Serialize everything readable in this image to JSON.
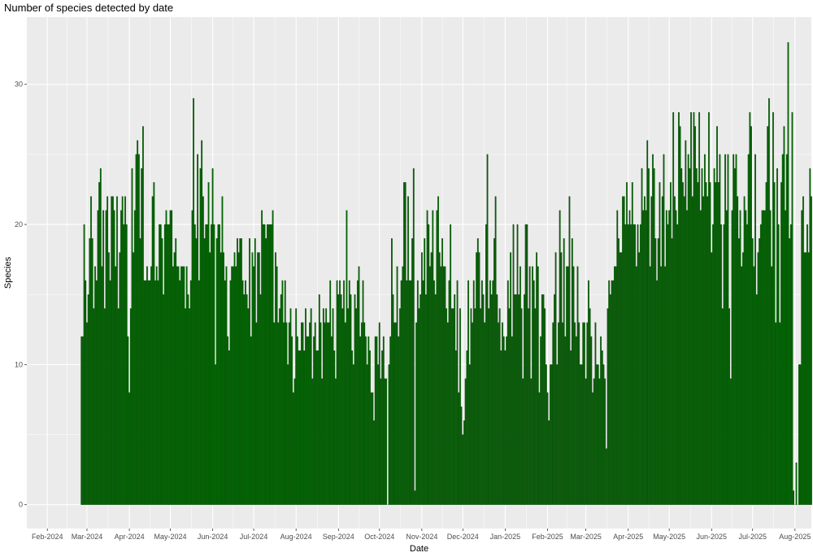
{
  "chart_data": {
    "type": "bar",
    "title": "Number of species detected by date",
    "xlabel": "Date",
    "ylabel": "Species",
    "x_start": "2024-02-26",
    "xlim": [
      "2024-01-17",
      "2025-08-13"
    ],
    "ylim": [
      -1.7,
      34.8
    ],
    "y_ticks": [
      0,
      10,
      20,
      30
    ],
    "x_ticks": [
      {
        "date": "2024-02-01",
        "label": "Feb-2024"
      },
      {
        "date": "2024-03-01",
        "label": "Mar-2024"
      },
      {
        "date": "2024-04-01",
        "label": "Apr-2024"
      },
      {
        "date": "2024-05-01",
        "label": "May-2024"
      },
      {
        "date": "2024-06-01",
        "label": "Jun-2024"
      },
      {
        "date": "2024-07-01",
        "label": "Jul-2024"
      },
      {
        "date": "2024-08-01",
        "label": "Aug-2024"
      },
      {
        "date": "2024-09-01",
        "label": "Sep-2024"
      },
      {
        "date": "2024-10-01",
        "label": "Oct-2024"
      },
      {
        "date": "2024-11-01",
        "label": "Nov-2024"
      },
      {
        "date": "2024-12-01",
        "label": "Dec-2024"
      },
      {
        "date": "2025-01-01",
        "label": "Jan-2025"
      },
      {
        "date": "2025-02-01",
        "label": "Feb-2025"
      },
      {
        "date": "2025-03-01",
        "label": "Mar-2025"
      },
      {
        "date": "2025-04-01",
        "label": "Apr-2025"
      },
      {
        "date": "2025-05-01",
        "label": "May-2025"
      },
      {
        "date": "2025-06-01",
        "label": "Jun-2025"
      },
      {
        "date": "2025-07-01",
        "label": "Jul-2025"
      },
      {
        "date": "2025-08-01",
        "label": "Aug-2025"
      }
    ],
    "values": [
      12,
      12,
      20,
      16,
      13,
      15,
      19,
      22,
      19,
      14,
      17,
      16,
      21,
      23,
      24,
      17,
      21,
      14,
      21,
      22,
      18,
      16,
      22,
      22,
      21,
      17,
      22,
      14,
      18,
      21,
      22,
      20,
      22,
      20,
      12,
      8,
      14,
      24,
      18,
      21,
      25,
      26,
      25,
      19,
      24,
      27,
      16,
      16,
      17,
      16,
      16,
      17,
      22,
      23,
      16,
      17,
      16,
      20,
      20,
      19,
      15,
      20,
      21,
      20,
      20,
      21,
      21,
      17,
      18,
      19,
      17,
      17,
      16,
      17,
      17,
      17,
      14,
      17,
      15,
      14,
      16,
      21,
      29,
      20,
      19,
      25,
      16,
      24,
      26,
      22,
      19,
      20,
      20,
      23,
      18,
      20,
      24,
      20,
      10,
      19,
      20,
      20,
      18,
      22,
      18,
      16,
      17,
      12,
      11,
      16,
      17,
      17,
      18,
      17,
      19,
      18,
      19,
      19,
      16,
      15,
      16,
      15,
      14,
      19,
      12,
      18,
      17,
      19,
      13,
      18,
      18,
      15,
      21,
      20,
      20,
      19,
      20,
      20,
      20,
      20,
      21,
      13,
      18,
      17,
      13,
      14,
      15,
      16,
      13,
      16,
      13,
      10,
      13,
      14,
      12,
      8,
      9,
      14,
      12,
      11,
      11,
      13,
      13,
      11,
      14,
      12,
      12,
      13,
      14,
      9,
      12,
      13,
      11,
      11,
      15,
      13,
      9,
      14,
      13,
      14,
      13,
      13,
      16,
      12,
      14,
      11,
      9,
      16,
      15,
      16,
      15,
      14,
      16,
      13,
      21,
      14,
      16,
      15,
      11,
      10,
      15,
      14,
      16,
      17,
      12,
      13,
      16,
      13,
      12,
      10,
      12,
      11,
      8,
      8,
      6,
      12,
      12,
      10,
      13,
      9,
      11,
      12,
      9,
      9,
      0,
      10,
      12,
      19,
      15,
      13,
      13,
      17,
      12,
      14,
      16,
      17,
      23,
      23,
      16,
      22,
      16,
      16,
      19,
      24,
      1,
      13,
      16,
      14,
      15,
      18,
      16,
      19,
      15,
      21,
      20,
      17,
      18,
      21,
      16,
      15,
      21,
      22,
      18,
      17,
      19,
      17,
      17,
      14,
      13,
      16,
      20,
      14,
      14,
      15,
      11,
      16,
      8,
      14,
      7,
      5,
      6,
      9,
      11,
      16,
      10,
      14,
      13,
      16,
      14,
      18,
      19,
      18,
      14,
      16,
      15,
      13,
      20,
      25,
      14,
      16,
      15,
      16,
      19,
      22,
      15,
      13,
      14,
      11,
      13,
      12,
      11,
      12,
      16,
      14,
      18,
      12,
      20,
      15,
      15,
      20,
      15,
      17,
      14,
      9,
      15,
      20,
      20,
      14,
      17,
      9,
      17,
      16,
      14,
      18,
      17,
      8,
      12,
      15,
      15,
      14,
      10,
      8,
      6,
      10,
      10,
      13,
      15,
      18,
      10,
      13,
      21,
      18,
      13,
      19,
      12,
      17,
      17,
      22,
      11,
      19,
      17,
      13,
      12,
      17,
      13,
      10,
      10,
      13,
      13,
      9,
      13,
      16,
      14,
      12,
      8,
      9,
      13,
      10,
      10,
      9,
      12,
      11,
      10,
      9,
      4,
      14,
      16,
      15,
      16,
      16,
      17,
      17,
      21,
      19,
      18,
      18,
      22,
      22,
      20,
      23,
      20,
      21,
      20,
      23,
      20,
      20,
      17,
      20,
      18,
      20,
      24,
      21,
      22,
      21,
      26,
      24,
      17,
      22,
      25,
      24,
      19,
      16,
      19,
      23,
      17,
      22,
      25,
      17,
      21,
      20,
      21,
      23,
      19,
      28,
      22,
      21,
      20,
      28,
      27,
      24,
      23,
      22,
      26,
      21,
      25,
      24,
      28,
      22,
      28,
      27,
      24,
      23,
      28,
      21,
      24,
      22,
      25,
      23,
      22,
      28,
      23,
      18,
      20,
      24,
      23,
      27,
      23,
      25,
      20,
      14,
      20,
      25,
      21,
      25,
      14,
      9,
      21,
      25,
      24,
      25,
      22,
      19,
      21,
      17,
      18,
      22,
      21,
      20,
      25,
      28,
      27,
      19,
      17,
      25,
      15,
      18,
      19,
      20,
      21,
      21,
      21,
      23,
      27,
      29,
      21,
      17,
      28,
      23,
      13,
      24,
      20,
      13,
      23,
      25,
      27,
      21,
      25,
      33,
      19,
      20,
      28,
      1,
      0,
      3,
      0,
      10,
      10,
      21,
      22,
      18,
      18,
      20,
      18,
      24,
      22
    ]
  }
}
